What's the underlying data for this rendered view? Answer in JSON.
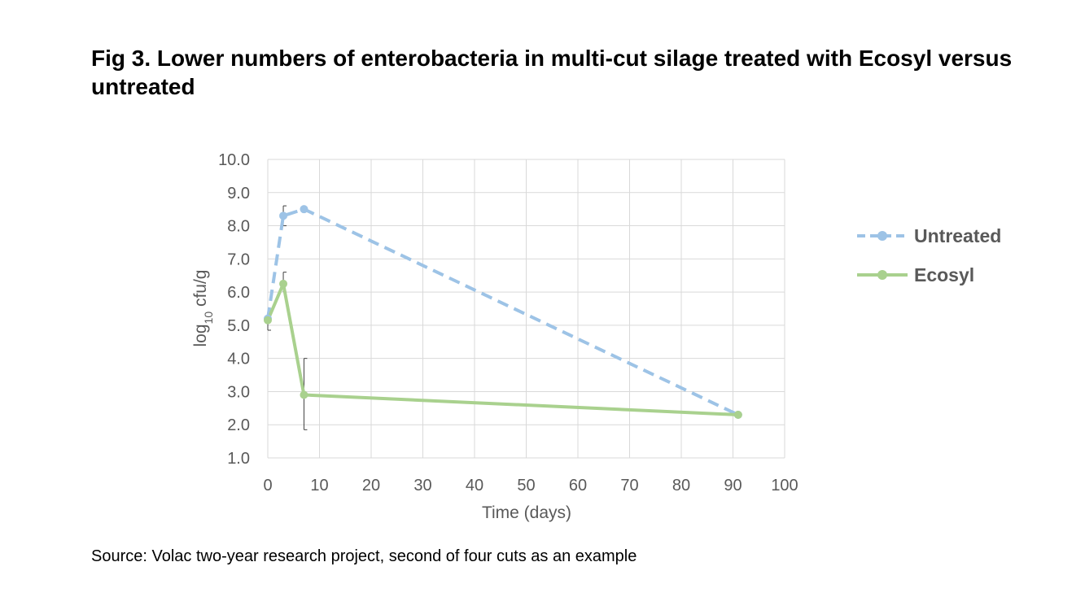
{
  "title": "Fig 3. Lower numbers of enterobacteria in multi-cut silage treated with Ecosyl versus untreated",
  "source": "Source: Volac two-year research project, second of four cuts as an example",
  "chart_data": {
    "type": "line",
    "title": "Fig 3. Lower numbers of enterobacteria in multi-cut silage treated with Ecosyl versus untreated",
    "xlabel": "Time (days)",
    "ylabel": "log10 cfu/g",
    "ylabel_parts": {
      "base": "log",
      "sub": "10",
      "rest": " cfu/g"
    },
    "xlim": [
      0,
      100
    ],
    "ylim": [
      1.0,
      10.0
    ],
    "xticks": [
      0,
      10,
      20,
      30,
      40,
      50,
      60,
      70,
      80,
      90,
      100
    ],
    "yticks": [
      "1.0",
      "2.0",
      "3.0",
      "4.0",
      "5.0",
      "6.0",
      "7.0",
      "8.0",
      "9.0",
      "10.0"
    ],
    "grid": true,
    "legend_position": "right",
    "series": [
      {
        "name": "Untreated",
        "color": "#9DC3E6",
        "dash": "dashed",
        "x": [
          0,
          3,
          7,
          91
        ],
        "y": [
          5.2,
          8.3,
          8.5,
          2.3
        ],
        "error_high": [
          5.3,
          8.6,
          8.55,
          2.3
        ],
        "error_low": [
          5.1,
          8.0,
          8.45,
          2.3
        ]
      },
      {
        "name": "Ecosyl",
        "color": "#A9D18E",
        "dash": "solid",
        "x": [
          0,
          3,
          7,
          91
        ],
        "y": [
          5.15,
          6.25,
          2.9,
          2.3
        ],
        "error_high": [
          5.25,
          6.6,
          4.0,
          2.3
        ],
        "error_low": [
          4.85,
          6.0,
          1.85,
          2.3
        ]
      }
    ]
  }
}
